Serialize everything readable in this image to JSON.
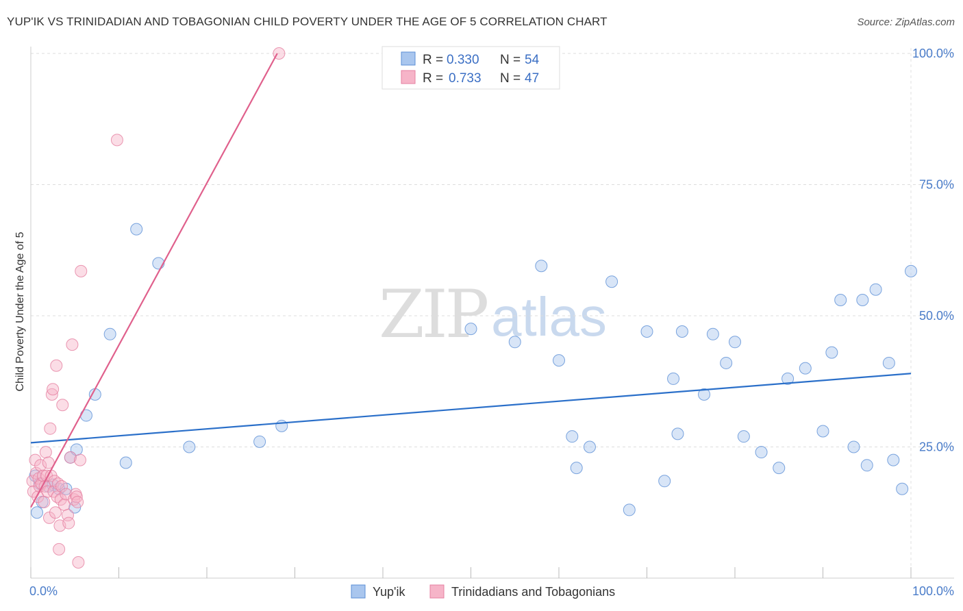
{
  "title": "YUP'IK VS TRINIDADIAN AND TOBAGONIAN CHILD POVERTY UNDER THE AGE OF 5 CORRELATION CHART",
  "source": "Source: ZipAtlas.com",
  "watermark": {
    "zip": "ZIP",
    "atlas": "atlas"
  },
  "colors": {
    "blue_fill": "#a9c6ee",
    "blue_stroke": "#5b8fd6",
    "blue_line": "#2a6fc9",
    "pink_fill": "#f6b4c8",
    "pink_stroke": "#e57fa0",
    "pink_line": "#e0608c"
  },
  "legend": {
    "rows": [
      {
        "r_label": "R = ",
        "r_value": "0.330",
        "n_label": "N = ",
        "n_value": "54"
      },
      {
        "r_label": "R = ",
        "r_value": "0.733",
        "n_label": "N = ",
        "n_value": "47"
      }
    ]
  },
  "chart_data": {
    "type": "scatter",
    "title": "YUP'IK VS TRINIDADIAN AND TOBAGONIAN CHILD POVERTY UNDER THE AGE OF 5 CORRELATION CHART",
    "xlabel": "",
    "ylabel": "Child Poverty Under the Age of 5",
    "xlim": [
      0,
      100
    ],
    "ylim": [
      0,
      102
    ],
    "x_tick_labels": [
      "0.0%",
      "100.0%"
    ],
    "y_ticks": [
      25,
      50,
      75,
      100
    ],
    "y_tick_labels": [
      "25.0%",
      "50.0%",
      "75.0%",
      "100.0%"
    ],
    "grid": true,
    "legend_position": "top-center",
    "series": [
      {
        "name": "Yup'ik",
        "r": 0.33,
        "n": 54,
        "trend": {
          "x": [
            0,
            100
          ],
          "y": [
            25.8,
            39.0
          ]
        },
        "points": [
          [
            0.5,
            19.5
          ],
          [
            0.7,
            12.5
          ],
          [
            1.0,
            18.0
          ],
          [
            1.3,
            14.5
          ],
          [
            2.0,
            17.5
          ],
          [
            2.5,
            17.8
          ],
          [
            3.2,
            17.0
          ],
          [
            4.0,
            17.0
          ],
          [
            4.5,
            23.0
          ],
          [
            5.0,
            13.5
          ],
          [
            5.2,
            24.5
          ],
          [
            6.3,
            31.0
          ],
          [
            7.3,
            35.0
          ],
          [
            9.0,
            46.5
          ],
          [
            10.8,
            22.0
          ],
          [
            12.0,
            66.5
          ],
          [
            14.5,
            60.0
          ],
          [
            18.0,
            25.0
          ],
          [
            26.0,
            26.0
          ],
          [
            28.5,
            29.0
          ],
          [
            50.0,
            47.5
          ],
          [
            55.0,
            45.0
          ],
          [
            58.0,
            59.5
          ],
          [
            60.0,
            41.5
          ],
          [
            61.5,
            27.0
          ],
          [
            62.0,
            21.0
          ],
          [
            63.5,
            25.0
          ],
          [
            66.0,
            56.5
          ],
          [
            68.0,
            13.0
          ],
          [
            70.0,
            47.0
          ],
          [
            72.0,
            18.5
          ],
          [
            73.0,
            38.0
          ],
          [
            73.5,
            27.5
          ],
          [
            74.0,
            47.0
          ],
          [
            76.5,
            35.0
          ],
          [
            77.5,
            46.5
          ],
          [
            79.0,
            41.0
          ],
          [
            80.0,
            45.0
          ],
          [
            81.0,
            27.0
          ],
          [
            83.0,
            24.0
          ],
          [
            85.0,
            21.0
          ],
          [
            86.0,
            38.0
          ],
          [
            88.0,
            40.0
          ],
          [
            90.0,
            28.0
          ],
          [
            91.0,
            43.0
          ],
          [
            92.0,
            53.0
          ],
          [
            93.5,
            25.0
          ],
          [
            94.5,
            53.0
          ],
          [
            95.0,
            21.5
          ],
          [
            96.0,
            55.0
          ],
          [
            97.5,
            41.0
          ],
          [
            98.0,
            22.5
          ],
          [
            99.0,
            17.0
          ],
          [
            100.0,
            58.5
          ]
        ]
      },
      {
        "name": "Trinidadians and Tobagonians",
        "r": 0.733,
        "n": 47,
        "trend": {
          "x": [
            0,
            28
          ],
          "y": [
            13.5,
            100
          ]
        },
        "points": [
          [
            0.2,
            18.5
          ],
          [
            0.3,
            16.5
          ],
          [
            0.5,
            22.5
          ],
          [
            0.6,
            20.0
          ],
          [
            0.8,
            15.5
          ],
          [
            0.9,
            19.0
          ],
          [
            1.0,
            17.5
          ],
          [
            1.1,
            21.5
          ],
          [
            1.2,
            18.0
          ],
          [
            1.4,
            19.5
          ],
          [
            1.5,
            14.5
          ],
          [
            1.6,
            17.5
          ],
          [
            1.7,
            24.0
          ],
          [
            1.8,
            19.5
          ],
          [
            1.9,
            16.5
          ],
          [
            2.0,
            22.0
          ],
          [
            2.1,
            11.5
          ],
          [
            2.2,
            28.5
          ],
          [
            2.3,
            19.5
          ],
          [
            2.4,
            35.0
          ],
          [
            2.5,
            36.0
          ],
          [
            2.6,
            16.5
          ],
          [
            2.7,
            18.5
          ],
          [
            2.8,
            12.5
          ],
          [
            2.9,
            40.5
          ],
          [
            3.0,
            15.5
          ],
          [
            3.1,
            18.0
          ],
          [
            3.2,
            5.5
          ],
          [
            3.3,
            10.0
          ],
          [
            3.4,
            15.0
          ],
          [
            3.5,
            17.5
          ],
          [
            3.6,
            33.0
          ],
          [
            3.8,
            14.0
          ],
          [
            4.0,
            16.0
          ],
          [
            4.2,
            12.0
          ],
          [
            4.3,
            10.5
          ],
          [
            4.5,
            23.0
          ],
          [
            4.7,
            44.5
          ],
          [
            4.9,
            15.0
          ],
          [
            5.1,
            16.0
          ],
          [
            5.2,
            15.5
          ],
          [
            5.3,
            14.5
          ],
          [
            5.4,
            3.0
          ],
          [
            5.6,
            22.5
          ],
          [
            5.7,
            58.5
          ],
          [
            9.8,
            83.5
          ],
          [
            28.2,
            100.0
          ]
        ]
      }
    ]
  }
}
